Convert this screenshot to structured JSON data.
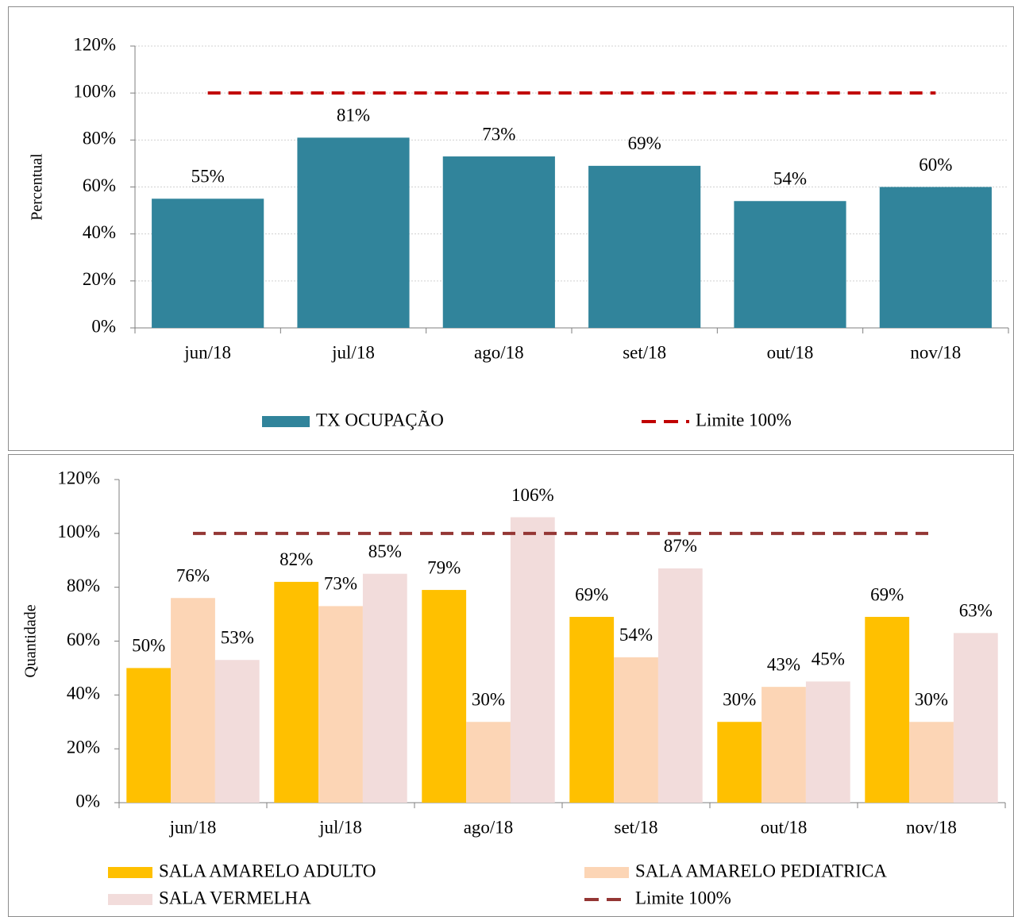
{
  "chart_data": [
    {
      "type": "bar",
      "y_label": "Percentual",
      "categories": [
        "jun/18",
        "jul/18",
        "ago/18",
        "set/18",
        "out/18",
        "nov/18"
      ],
      "series": [
        {
          "name": "TX OCUPAÇÃO",
          "color": "#31849b",
          "values": [
            55,
            81,
            73,
            69,
            54,
            60
          ],
          "value_labels": [
            "55%",
            "81%",
            "73%",
            "69%",
            "54%",
            "60%"
          ]
        },
        {
          "name": "Limite 100%",
          "color": "#c00000",
          "kind": "line",
          "line_style": "dashed",
          "values": [
            100,
            100,
            100,
            100,
            100,
            100
          ]
        }
      ],
      "ylim": [
        0,
        120
      ],
      "yticks": [
        {
          "value": 0,
          "label": "0%"
        },
        {
          "value": 20,
          "label": "20%"
        },
        {
          "value": 40,
          "label": "40%"
        },
        {
          "value": 60,
          "label": "60%"
        },
        {
          "value": 80,
          "label": "80%"
        },
        {
          "value": 100,
          "label": "100%"
        },
        {
          "value": 120,
          "label": "120%"
        }
      ],
      "grid": true,
      "legend": "bottom"
    },
    {
      "type": "bar",
      "y_label": "Quantidade",
      "categories": [
        "jun/18",
        "jul/18",
        "ago/18",
        "set/18",
        "out/18",
        "nov/18"
      ],
      "series": [
        {
          "name": "SALA AMARELO ADULTO",
          "color": "#ffc000",
          "values": [
            50,
            82,
            79,
            69,
            30,
            69
          ],
          "value_labels": [
            "50%",
            "82%",
            "79%",
            "69%",
            "30%",
            "69%"
          ]
        },
        {
          "name": "SALA AMARELO PEDIATRICA",
          "color": "#fcd5b5",
          "values": [
            76,
            73,
            30,
            54,
            43,
            30
          ],
          "value_labels": [
            "76%",
            "73%",
            "30%",
            "54%",
            "43%",
            "30%"
          ]
        },
        {
          "name": "SALA VERMELHA",
          "color": "#f2dcdb",
          "values": [
            53,
            85,
            106,
            87,
            45,
            63
          ],
          "value_labels": [
            "53%",
            "85%",
            "106%",
            "87%",
            "45%",
            "63%"
          ]
        },
        {
          "name": "Limite 100%",
          "color": "#943634",
          "kind": "line",
          "line_style": "dashed",
          "values": [
            100,
            100,
            100,
            100,
            100,
            100
          ]
        }
      ],
      "ylim": [
        0,
        120
      ],
      "yticks": [
        {
          "value": 0,
          "label": "0%"
        },
        {
          "value": 20,
          "label": "20%"
        },
        {
          "value": 40,
          "label": "40%"
        },
        {
          "value": 60,
          "label": "60%"
        },
        {
          "value": 80,
          "label": "80%"
        },
        {
          "value": 100,
          "label": "100%"
        },
        {
          "value": 120,
          "label": "120%"
        }
      ],
      "grid": false,
      "legend": "bottom"
    }
  ]
}
